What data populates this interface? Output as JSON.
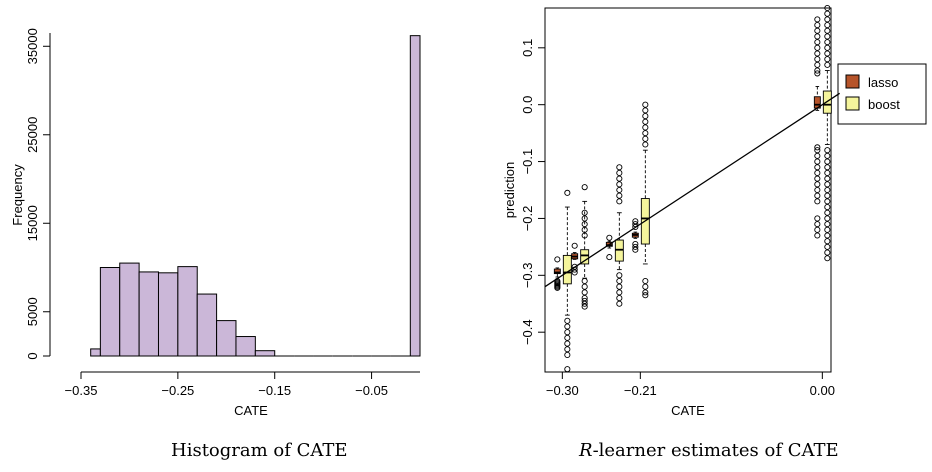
{
  "captions": {
    "left": "Histogram of CATE",
    "right_r": "R",
    "right_rest": "-learner estimates of CATE"
  },
  "chart_data": [
    {
      "type": "bar",
      "title": "",
      "xlabel": "CATE",
      "ylabel": "Frequency",
      "xlim": [
        -0.35,
        0.0
      ],
      "ylim": [
        0,
        36500
      ],
      "x_ticks": [
        -0.35,
        -0.25,
        -0.15,
        -0.05
      ],
      "x_tick_labels": [
        "−0.35",
        "−0.25",
        "−0.15",
        "−0.05"
      ],
      "y_ticks": [
        0,
        5000,
        15000,
        25000,
        35000
      ],
      "y_tick_labels": [
        "0",
        "5000",
        "15000",
        "25000",
        "35000"
      ],
      "bar_color": "#cbb7d8",
      "bins": [
        {
          "from": -0.34,
          "to": -0.33,
          "value": 800
        },
        {
          "from": -0.33,
          "to": -0.31,
          "value": 10000
        },
        {
          "from": -0.31,
          "to": -0.29,
          "value": 10500
        },
        {
          "from": -0.29,
          "to": -0.27,
          "value": 9500
        },
        {
          "from": -0.27,
          "to": -0.25,
          "value": 9400
        },
        {
          "from": -0.25,
          "to": -0.23,
          "value": 10100
        },
        {
          "from": -0.23,
          "to": -0.21,
          "value": 7000
        },
        {
          "from": -0.21,
          "to": -0.19,
          "value": 4000
        },
        {
          "from": -0.19,
          "to": -0.17,
          "value": 2200
        },
        {
          "from": -0.17,
          "to": -0.15,
          "value": 600
        },
        {
          "from": -0.15,
          "to": -0.13,
          "value": 0
        },
        {
          "from": -0.13,
          "to": -0.11,
          "value": 0
        },
        {
          "from": -0.11,
          "to": -0.09,
          "value": 0
        },
        {
          "from": -0.09,
          "to": -0.07,
          "value": 0
        },
        {
          "from": -0.07,
          "to": -0.05,
          "value": 0
        },
        {
          "from": -0.05,
          "to": -0.03,
          "value": 0
        },
        {
          "from": -0.03,
          "to": -0.01,
          "value": 0
        },
        {
          "from": -0.01,
          "to": 0.0,
          "value": 36200
        }
      ]
    },
    {
      "type": "box",
      "title": "",
      "xlabel": "CATE",
      "ylabel": "prediction",
      "xlim": [
        -0.32,
        0.01
      ],
      "ylim": [
        -0.47,
        0.17
      ],
      "x_ticks": [
        -0.3,
        -0.21,
        0.0
      ],
      "x_tick_labels": [
        "−0.30",
        "−0.21",
        "0.00"
      ],
      "y_ticks": [
        -0.4,
        -0.3,
        -0.2,
        -0.1,
        0.0,
        0.1
      ],
      "y_tick_labels": [
        "−0.4",
        "−0.3",
        "−0.2",
        "−0.1",
        "0.0",
        "0.1"
      ],
      "reference_line": {
        "from": [
          -0.32,
          -0.32
        ],
        "to": [
          0.02,
          0.02
        ]
      },
      "legend": {
        "position": "right",
        "entries": [
          {
            "name": "lasso",
            "color": "#b6542a"
          },
          {
            "name": "boost",
            "color": "#f5f59c"
          }
        ]
      },
      "series": [
        {
          "name": "lasso",
          "color": "#b6542a",
          "groups": [
            {
              "x": -0.3,
              "lo": -0.303,
              "q1": -0.297,
              "med": -0.295,
              "q3": -0.289,
              "hi": -0.287,
              "outliers": [
                -0.272,
                -0.31,
                -0.312,
                -0.314,
                -0.316,
                -0.318,
                -0.32,
                -0.322
              ]
            },
            {
              "x": -0.28,
              "lo": -0.272,
              "q1": -0.271,
              "med": -0.267,
              "q3": -0.262,
              "hi": -0.26,
              "outliers": [
                -0.248,
                -0.285,
                -0.29,
                -0.295
              ]
            },
            {
              "x": -0.24,
              "lo": -0.252,
              "q1": -0.249,
              "med": -0.247,
              "q3": -0.242,
              "hi": -0.24,
              "outliers": [
                -0.234,
                -0.268
              ]
            },
            {
              "x": -0.21,
              "lo": -0.235,
              "q1": -0.233,
              "med": -0.229,
              "q3": -0.226,
              "hi": -0.224,
              "outliers": [
                -0.205,
                -0.21,
                -0.215,
                -0.245,
                -0.25,
                -0.255
              ]
            },
            {
              "x": 0.0,
              "lo": -0.01,
              "q1": -0.006,
              "med": 0.0,
              "q3": 0.014,
              "hi": 0.032,
              "outliers": [
                0.055,
                0.06,
                0.07,
                0.08,
                0.09,
                0.1,
                0.11,
                0.12,
                0.13,
                0.14,
                0.15,
                -0.075,
                -0.08,
                -0.09,
                -0.1,
                -0.11,
                -0.12,
                -0.13,
                -0.14,
                -0.15,
                -0.16,
                -0.17,
                -0.2,
                -0.21,
                -0.22,
                -0.23
              ]
            }
          ]
        },
        {
          "name": "boost",
          "color": "#f5f59c",
          "groups": [
            {
              "x": -0.3,
              "lo": -0.37,
              "q1": -0.315,
              "med": -0.295,
              "q3": -0.265,
              "hi": -0.18,
              "outliers": [
                -0.155,
                -0.38,
                -0.39,
                -0.4,
                -0.41,
                -0.42,
                -0.43,
                -0.44,
                -0.465
              ]
            },
            {
              "x": -0.28,
              "lo": -0.305,
              "q1": -0.28,
              "med": -0.265,
              "q3": -0.255,
              "hi": -0.17,
              "outliers": [
                -0.145,
                -0.19,
                -0.2,
                -0.21,
                -0.22,
                -0.23,
                -0.31,
                -0.32,
                -0.33,
                -0.34,
                -0.345,
                -0.35,
                -0.355
              ]
            },
            {
              "x": -0.24,
              "lo": -0.29,
              "q1": -0.275,
              "med": -0.255,
              "q3": -0.238,
              "hi": -0.19,
              "outliers": [
                -0.11,
                -0.12,
                -0.13,
                -0.14,
                -0.15,
                -0.16,
                -0.17,
                -0.3,
                -0.31,
                -0.32,
                -0.33,
                -0.34,
                -0.35
              ]
            },
            {
              "x": -0.21,
              "lo": -0.28,
              "q1": -0.245,
              "med": -0.2,
              "q3": -0.165,
              "hi": -0.08,
              "outliers": [
                0.0,
                -0.01,
                -0.02,
                -0.03,
                -0.04,
                -0.05,
                -0.06,
                -0.07,
                -0.31,
                -0.32,
                -0.33,
                -0.335
              ]
            },
            {
              "x": 0.0,
              "lo": -0.07,
              "q1": -0.015,
              "med": 0.0,
              "q3": 0.024,
              "hi": 0.06,
              "outliers": [
                0.07,
                0.08,
                0.09,
                0.1,
                0.11,
                0.12,
                0.13,
                0.14,
                0.15,
                0.16,
                0.17,
                -0.08,
                -0.09,
                -0.1,
                -0.11,
                -0.12,
                -0.13,
                -0.14,
                -0.15,
                -0.16,
                -0.17,
                -0.18,
                -0.19,
                -0.2,
                -0.21,
                -0.22,
                -0.23,
                -0.24,
                -0.25,
                -0.26,
                -0.27
              ]
            }
          ]
        }
      ]
    }
  ]
}
